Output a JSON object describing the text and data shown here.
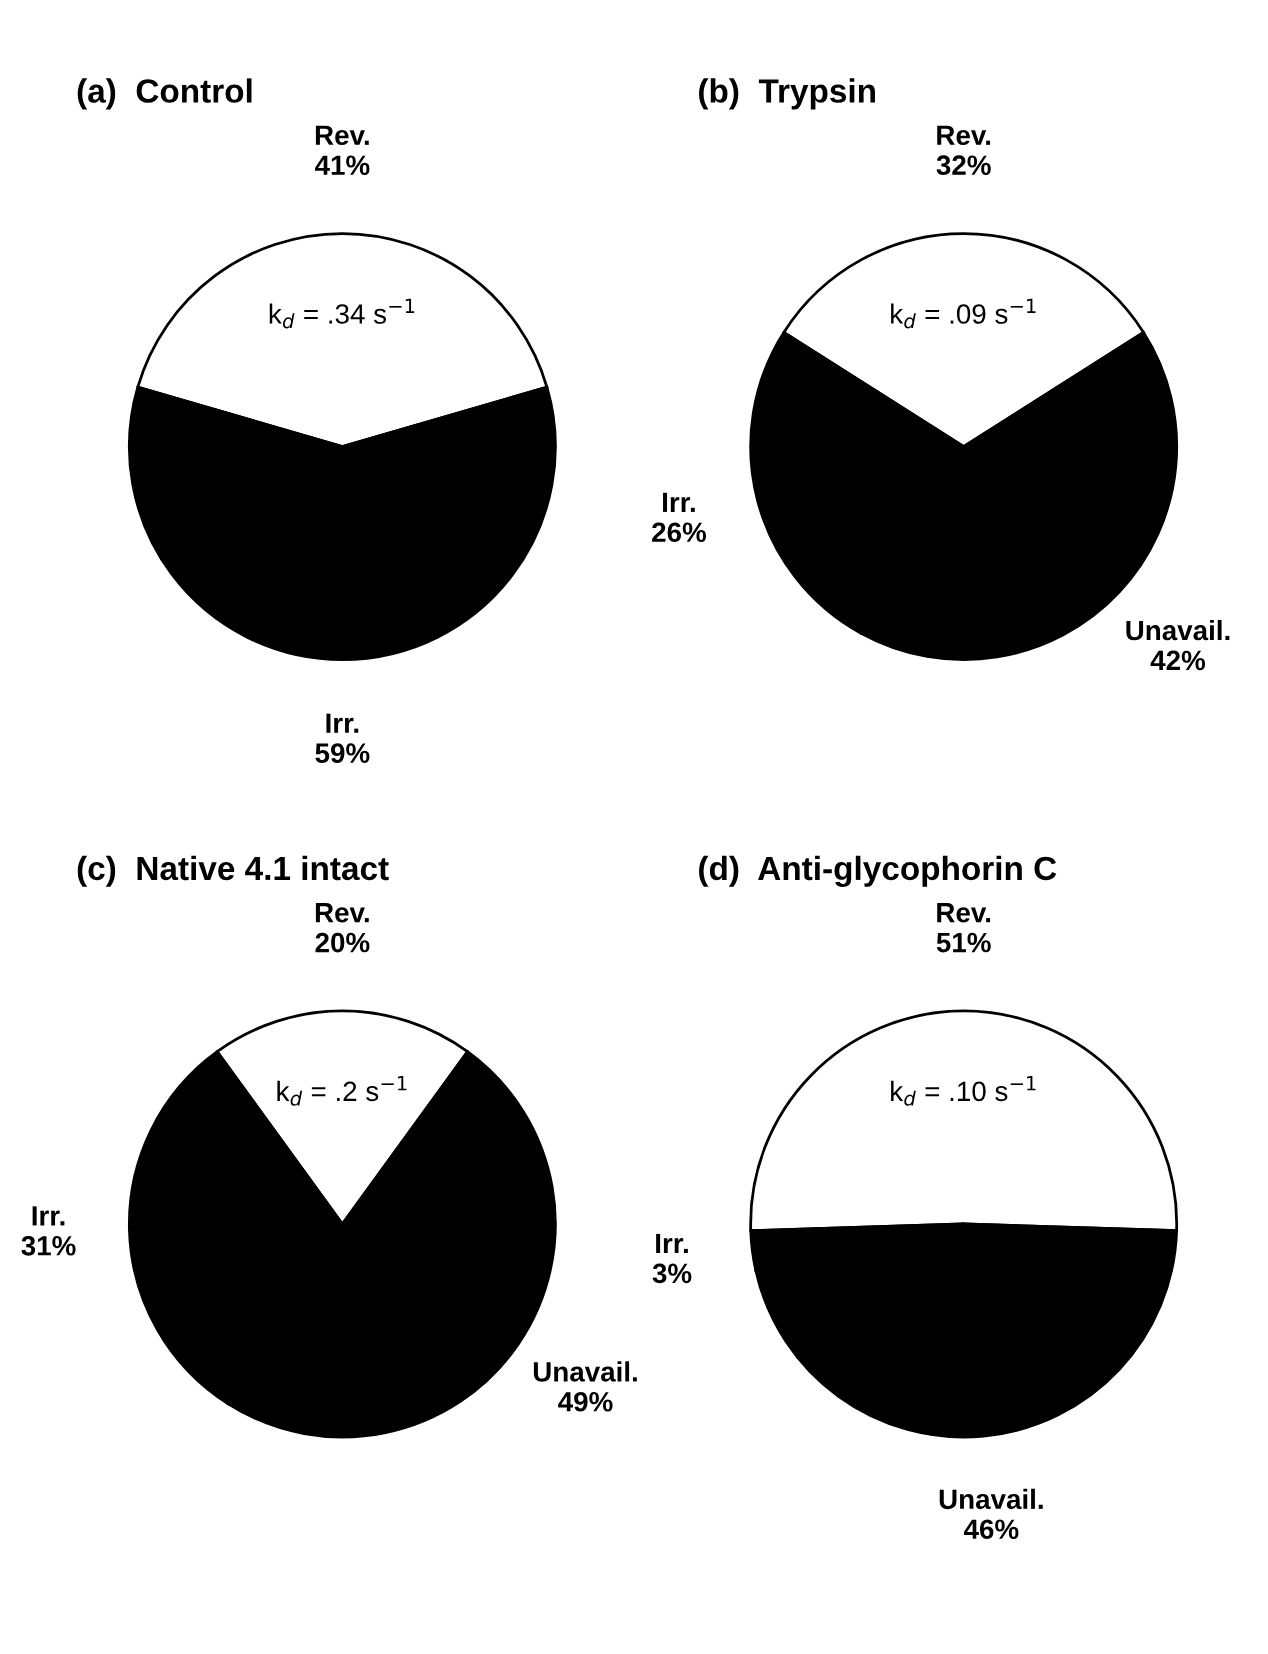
{
  "chart_data": [
    {
      "type": "pie",
      "title": "(a)  Control",
      "categories": [
        "Rev.",
        "Irr."
      ],
      "values": [
        41,
        59
      ],
      "value_labels": [
        "41%",
        "59%"
      ],
      "colors": [
        "#ffffff",
        "#000000"
      ],
      "annotations": [
        "k$_{d}$ = .34 s$^{−1}$"
      ]
    },
    {
      "type": "pie",
      "title": "(b)  Trypsin",
      "categories": [
        "Rev.",
        "Irr.",
        "Unavail."
      ],
      "values": [
        32,
        26,
        42
      ],
      "value_labels": [
        "32%",
        "26%",
        "42%"
      ],
      "colors": [
        "#ffffff",
        "#000000",
        "#000000"
      ],
      "annotations": [
        "k$_{d}$ = .09 s$^{−1}$"
      ]
    },
    {
      "type": "pie",
      "title": "(c)  Native 4.1 intact",
      "categories": [
        "Rev.",
        "Irr.",
        "Unavail."
      ],
      "values": [
        20,
        31,
        49
      ],
      "value_labels": [
        "20%",
        "31%",
        "49%"
      ],
      "colors": [
        "#ffffff",
        "#000000",
        "#000000"
      ],
      "annotations": [
        "k$_{d}$ = .2 s$^{−1}$"
      ]
    },
    {
      "type": "pie",
      "title": "(d)  Anti-glycophorin C",
      "categories": [
        "Rev.",
        "Irr.",
        "Unavail."
      ],
      "values": [
        51,
        3,
        46
      ],
      "value_labels": [
        "51%",
        "3%",
        "46%"
      ],
      "colors": [
        "#ffffff",
        "#000000",
        "#000000"
      ],
      "annotations": [
        "k$_{d}$ = .10 s$^{−1}$"
      ]
    }
  ]
}
